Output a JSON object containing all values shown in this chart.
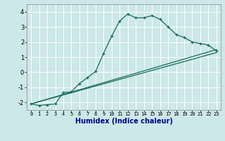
{
  "xlabel": "Humidex (Indice chaleur)",
  "background_color": "#cce8e8",
  "line_color": "#1a6b5a",
  "grid_color": "#ffffff",
  "xlim": [
    -0.5,
    23.5
  ],
  "ylim": [
    -2.5,
    4.5
  ],
  "xticks": [
    0,
    1,
    2,
    3,
    4,
    5,
    6,
    7,
    8,
    9,
    10,
    11,
    12,
    13,
    14,
    15,
    16,
    17,
    18,
    19,
    20,
    21,
    22,
    23
  ],
  "yticks": [
    -2,
    -1,
    0,
    1,
    2,
    3,
    4
  ],
  "curve1_x": [
    0,
    1,
    2,
    3,
    4,
    5,
    6,
    7,
    8,
    9,
    10,
    11,
    12,
    13,
    14,
    15,
    16,
    17,
    18,
    19,
    20,
    21,
    22,
    23
  ],
  "curve1_y": [
    -2.1,
    -2.2,
    -2.15,
    -2.1,
    -1.35,
    -1.3,
    -0.75,
    -0.35,
    0.05,
    1.25,
    2.4,
    3.4,
    3.85,
    3.6,
    3.6,
    3.75,
    3.5,
    3.0,
    2.5,
    2.3,
    2.0,
    1.9,
    1.8,
    1.4
  ],
  "line2_x": [
    0,
    23
  ],
  "line2_y": [
    -2.1,
    1.3
  ],
  "line3_x": [
    0,
    23
  ],
  "line3_y": [
    -2.1,
    1.5
  ],
  "figsize": [
    3.2,
    2.0
  ],
  "dpi": 100,
  "xlabel_color": "#00008b",
  "xlabel_fontsize": 7,
  "tick_fontsize": 5,
  "ytick_fontsize": 6
}
